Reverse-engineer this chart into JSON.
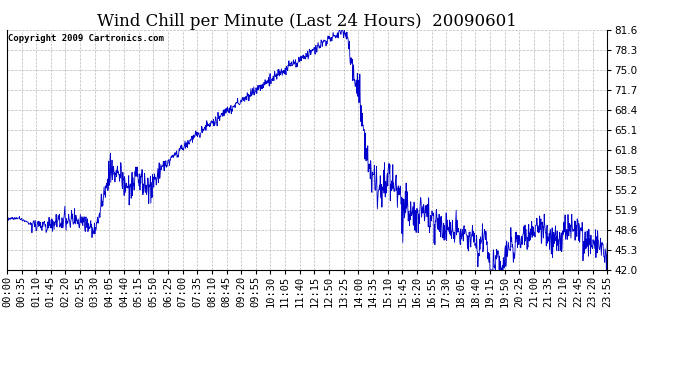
{
  "title": "Wind Chill per Minute (Last 24 Hours)  20090601",
  "copyright_text": "Copyright 2009 Cartronics.com",
  "line_color": "#0000cc",
  "background_color": "#ffffff",
  "grid_color": "#bbbbbb",
  "ylim": [
    42.0,
    81.6
  ],
  "yticks": [
    42.0,
    45.3,
    48.6,
    51.9,
    55.2,
    58.5,
    61.8,
    65.1,
    68.4,
    71.7,
    75.0,
    78.3,
    81.6
  ],
  "xtick_labels": [
    "00:00",
    "00:35",
    "01:10",
    "01:45",
    "02:20",
    "02:55",
    "03:30",
    "04:05",
    "04:40",
    "05:15",
    "05:50",
    "06:25",
    "07:00",
    "07:35",
    "08:10",
    "08:45",
    "09:20",
    "09:55",
    "10:30",
    "11:05",
    "11:40",
    "12:15",
    "12:50",
    "13:25",
    "14:00",
    "14:35",
    "15:10",
    "15:45",
    "16:20",
    "16:55",
    "17:30",
    "18:05",
    "18:40",
    "19:15",
    "19:50",
    "20:25",
    "21:00",
    "21:35",
    "22:10",
    "22:45",
    "23:20",
    "23:55"
  ],
  "n_points": 1440,
  "tick_fontsize": 7.5,
  "title_fontsize": 12
}
